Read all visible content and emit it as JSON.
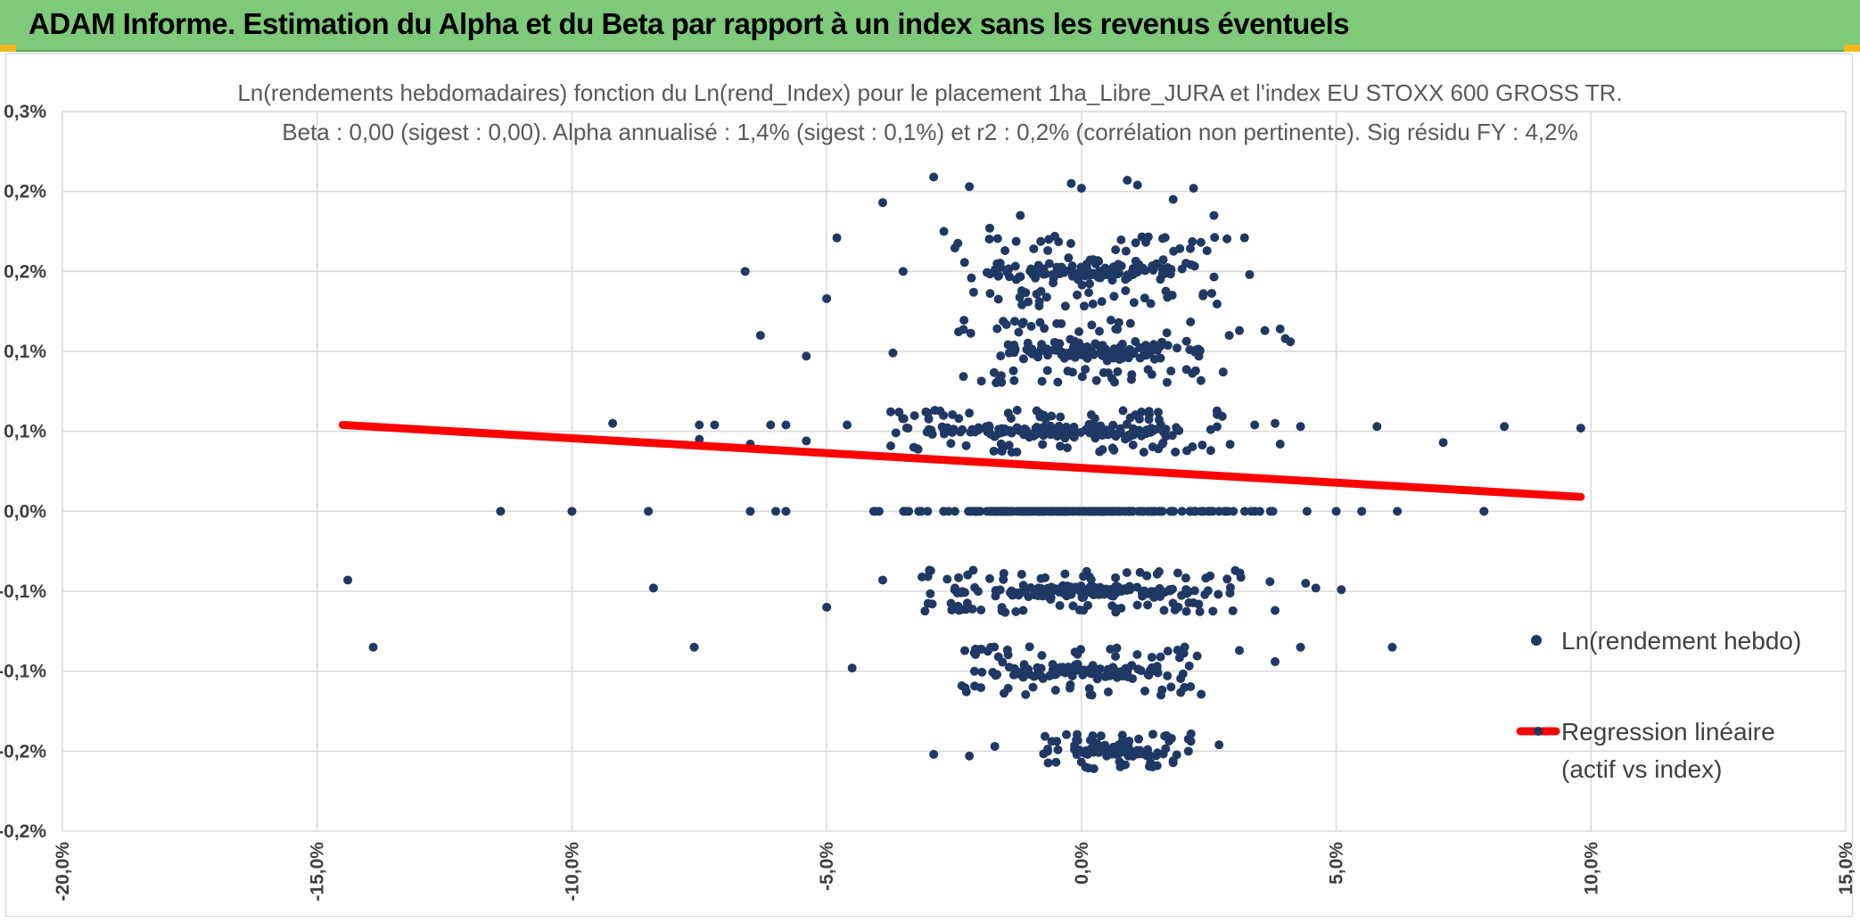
{
  "window": {
    "banner_title": "ADAM Informe. Estimation du Alpha et du Beta par rapport à un index sans les revenus éventuels"
  },
  "chart_data": {
    "type": "scatter",
    "title_line1": "Ln(rendements hebdomadaires) fonction du Ln(rend_Index) pour le placement 1ha_Libre_JURA et l'index EU STOXX 600 GROSS TR.",
    "title_line2": "Beta : 0,00 (sigest : 0,00). Alpha annualisé : 1,4% (sigest : 0,1%) et r2 : 0,2% (corrélation non pertinente). Sig résidu FY : 4,2%",
    "xlim": [
      -20,
      15
    ],
    "ylim": [
      -0.2,
      0.25
    ],
    "x_ticks": [
      "-20,0%",
      "-15,0%",
      "-10,0%",
      "-5,0%",
      "0,0%",
      "5,0%",
      "10,0%",
      "15,0%"
    ],
    "x_tick_values": [
      -20,
      -15,
      -10,
      -5,
      0,
      5,
      10,
      15
    ],
    "y_ticks": [
      "-0,2%",
      "-0,2%",
      "-0,1%",
      "-0,1%",
      "0,0%",
      "0,1%",
      "0,1%",
      "0,2%",
      "0,2%",
      "0,3%"
    ],
    "y_tick_values": [
      -0.2,
      -0.15,
      -0.1,
      -0.05,
      0,
      0.05,
      0.1,
      0.15,
      0.2,
      0.25
    ],
    "series": [
      {
        "name": "Ln(rendement hebdo)",
        "kind": "scatter",
        "color": "#1f3864",
        "note": "dense cluster x in [-5%,5%] at discrete levels; sample of representative points",
        "points": [
          [
            -14.4,
            -0.043
          ],
          [
            -13.9,
            -0.085
          ],
          [
            -11.4,
            0.0
          ],
          [
            -10.0,
            0.0
          ],
          [
            -8.5,
            0.0
          ],
          [
            -8.4,
            -0.048
          ],
          [
            -9.2,
            0.055
          ],
          [
            -7.6,
            -0.085
          ],
          [
            -7.5,
            0.045
          ],
          [
            -7.5,
            0.054
          ],
          [
            -7.2,
            0.054
          ],
          [
            -6.6,
            0.15
          ],
          [
            -6.3,
            0.11
          ],
          [
            -6.5,
            0.042
          ],
          [
            -6.5,
            0.0
          ],
          [
            -6.1,
            0.054
          ],
          [
            -6.0,
            0.0
          ],
          [
            -5.8,
            0.054
          ],
          [
            -5.8,
            0.0
          ],
          [
            -5.4,
            0.097
          ],
          [
            -5.4,
            0.044
          ],
          [
            -5.0,
            0.133
          ],
          [
            -4.8,
            0.171
          ],
          [
            -4.6,
            0.054
          ],
          [
            -3.9,
            0.193
          ],
          [
            -3.9,
            -0.043
          ],
          [
            -3.7,
            0.099
          ],
          [
            -3.5,
            0.15
          ],
          [
            -2.9,
            0.209
          ],
          [
            -2.7,
            0.175
          ],
          [
            -2.2,
            0.203
          ],
          [
            -1.8,
            0.177
          ],
          [
            -1.5,
            0.163
          ],
          [
            -1.2,
            0.185
          ],
          [
            -0.2,
            0.205
          ],
          [
            0.0,
            0.202
          ],
          [
            0.9,
            0.207
          ],
          [
            1.1,
            0.204
          ],
          [
            1.8,
            0.195
          ],
          [
            2.2,
            0.202
          ],
          [
            2.6,
            0.185
          ],
          [
            3.2,
            0.171
          ],
          [
            3.3,
            0.148
          ],
          [
            3.6,
            0.113
          ],
          [
            3.9,
            0.114
          ],
          [
            4.0,
            0.108
          ],
          [
            4.1,
            0.106
          ],
          [
            3.1,
            0.113
          ],
          [
            2.9,
            0.11
          ],
          [
            3.4,
            0.054
          ],
          [
            3.8,
            0.055
          ],
          [
            4.3,
            0.053
          ],
          [
            3.9,
            0.042
          ],
          [
            5.8,
            0.053
          ],
          [
            7.1,
            0.043
          ],
          [
            8.3,
            0.053
          ],
          [
            9.8,
            0.052
          ],
          [
            5.0,
            0.0
          ],
          [
            5.5,
            0.0
          ],
          [
            6.2,
            0.0
          ],
          [
            7.9,
            0.0
          ],
          [
            4.4,
            -0.045
          ],
          [
            4.6,
            -0.048
          ],
          [
            5.1,
            -0.049
          ],
          [
            3.7,
            -0.044
          ],
          [
            3.8,
            -0.062
          ],
          [
            4.3,
            -0.085
          ],
          [
            6.1,
            -0.085
          ],
          [
            3.8,
            -0.094
          ],
          [
            3.1,
            -0.087
          ],
          [
            -0.1,
            -0.143
          ],
          [
            0.3,
            -0.145
          ],
          [
            0.9,
            -0.147
          ],
          [
            1.3,
            -0.149
          ],
          [
            -1.7,
            -0.147
          ],
          [
            -2.2,
            -0.153
          ],
          [
            -2.9,
            -0.152
          ],
          [
            2.1,
            -0.15
          ],
          [
            2.7,
            -0.146
          ],
          [
            1.8,
            -0.156
          ],
          [
            -4.5,
            -0.098
          ],
          [
            -2.1,
            -0.1
          ],
          [
            -0.5,
            -0.102
          ],
          [
            0.5,
            -0.103
          ],
          [
            1.5,
            -0.101
          ],
          [
            -5.0,
            -0.06
          ],
          [
            -2.4,
            -0.062
          ],
          [
            0.7,
            -0.061
          ],
          [
            1.9,
            -0.06
          ]
        ]
      },
      {
        "name": "Regression linéaire\n(actif vs index)",
        "legend_line1": "Regression linéaire",
        "legend_line2": "(actif vs index)",
        "kind": "line",
        "color": "#ff0000",
        "points": [
          [
            -14.5,
            0.054
          ],
          [
            9.8,
            0.009
          ]
        ]
      }
    ],
    "dense_clusters": [
      {
        "y": 0.0,
        "xmin": -4.8,
        "xmax": 4.5,
        "spread": 0.0
      },
      {
        "y": 0.05,
        "xmin": -3.8,
        "xmax": 3.0,
        "spread": 0.006
      },
      {
        "y": 0.1,
        "xmin": -2.5,
        "xmax": 2.8,
        "spread": 0.009
      },
      {
        "y": 0.15,
        "xmin": -2.5,
        "xmax": 2.9,
        "spread": 0.01
      },
      {
        "y": -0.05,
        "xmin": -3.2,
        "xmax": 3.2,
        "spread": 0.006
      },
      {
        "y": -0.1,
        "xmin": -2.4,
        "xmax": 2.4,
        "spread": 0.007
      },
      {
        "y": -0.15,
        "xmin": -1.0,
        "xmax": 2.2,
        "spread": 0.005
      }
    ],
    "legend": {
      "placement": "right",
      "entries": [
        "Ln(rendement hebdo)",
        "Regression linéaire",
        "(actif vs index)"
      ]
    }
  }
}
